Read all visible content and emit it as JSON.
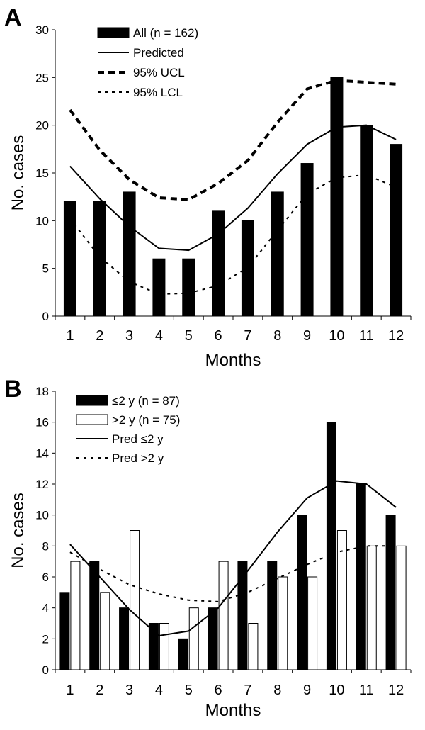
{
  "chart_data": [
    {
      "panel": "A",
      "type": "bar",
      "xlabel": "Months",
      "ylabel": "No. cases",
      "ylim": [
        0,
        30
      ],
      "yticks": [
        0,
        5,
        10,
        15,
        20,
        25,
        30
      ],
      "categories": [
        "1",
        "2",
        "3",
        "4",
        "5",
        "6",
        "7",
        "8",
        "9",
        "10",
        "11",
        "12"
      ],
      "legend_position": "top-left",
      "grid": false,
      "series": [
        {
          "name": "All (n = 162)",
          "kind": "bar",
          "color": "#000000",
          "values": [
            12,
            12,
            13,
            6,
            6,
            11,
            10,
            13,
            16,
            25,
            20,
            18
          ]
        },
        {
          "name": "Predicted",
          "kind": "line",
          "style": "solid",
          "values": [
            15.7,
            12.3,
            9.4,
            7.1,
            6.9,
            8.6,
            11.3,
            14.9,
            18.0,
            19.8,
            20.0,
            18.5
          ]
        },
        {
          "name": "95% UCL",
          "kind": "line",
          "style": "dashed",
          "values": [
            21.6,
            17.4,
            14.3,
            12.4,
            12.2,
            13.9,
            16.3,
            20.3,
            23.8,
            24.7,
            24.5,
            24.3
          ]
        },
        {
          "name": "95% LCL",
          "kind": "line",
          "style": "dotted",
          "values": [
            10.2,
            6.2,
            3.6,
            2.3,
            2.4,
            3.2,
            5.1,
            9.0,
            12.8,
            14.5,
            14.8,
            13.5
          ]
        }
      ]
    },
    {
      "panel": "B",
      "type": "bar",
      "xlabel": "Months",
      "ylabel": "No. cases",
      "ylim": [
        0,
        18
      ],
      "yticks": [
        0,
        2,
        4,
        6,
        8,
        10,
        12,
        14,
        16,
        18
      ],
      "categories": [
        "1",
        "2",
        "3",
        "4",
        "5",
        "6",
        "7",
        "8",
        "9",
        "10",
        "11",
        "12"
      ],
      "legend_position": "top-left",
      "grid": false,
      "series": [
        {
          "name": "≤2 y (n = 87)",
          "kind": "bar",
          "color": "#000000",
          "values": [
            5,
            7,
            4,
            3,
            2,
            4,
            7,
            7,
            10,
            16,
            12,
            10
          ]
        },
        {
          "name": ">2 y (n = 75)",
          "kind": "bar",
          "color": "#ffffff",
          "values": [
            7,
            5,
            9,
            3,
            4,
            7,
            3,
            6,
            6,
            9,
            8,
            8
          ]
        },
        {
          "name": "Pred ≤2 y",
          "kind": "line",
          "style": "solid",
          "values": [
            8.1,
            6.0,
            3.9,
            2.2,
            2.5,
            4.0,
            6.4,
            8.9,
            11.1,
            12.2,
            12.0,
            10.5
          ]
        },
        {
          "name": "Pred >2 y",
          "kind": "line",
          "style": "dotted",
          "values": [
            7.6,
            6.5,
            5.5,
            4.9,
            4.5,
            4.4,
            5.0,
            5.9,
            6.8,
            7.6,
            8.0,
            8.0
          ]
        }
      ]
    }
  ]
}
